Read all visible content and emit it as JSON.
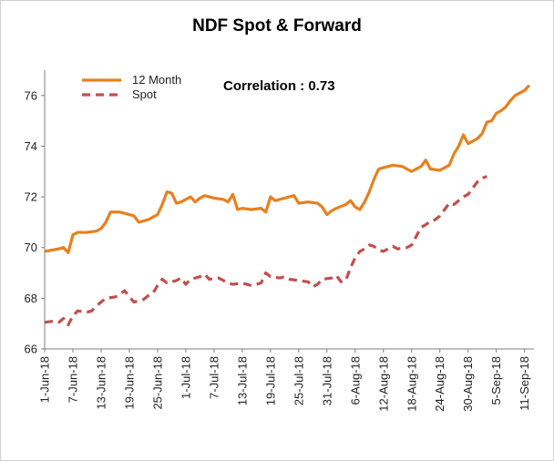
{
  "chart_data": {
    "type": "line",
    "title": "NDF Spot & Forward",
    "annotation": "Correlation : 0.73",
    "xlabel": "",
    "ylabel": "",
    "ylim": [
      66,
      77
    ],
    "yticks": [
      66,
      68,
      70,
      72,
      74,
      76
    ],
    "grid": false,
    "legend_position": "top-left",
    "x_tick_labels": [
      "1-Jun-18",
      "7-Jun-18",
      "13-Jun-18",
      "19-Jun-18",
      "25-Jun-18",
      "1-Jul-18",
      "7-Jul-18",
      "13-Jul-18",
      "19-Jul-18",
      "25-Jul-18",
      "31-Jul-18",
      "6-Aug-18",
      "12-Aug-18",
      "18-Aug-18",
      "24-Aug-18",
      "30-Aug-18",
      "5-Sep-18",
      "11-Sep-18"
    ],
    "x_tick_index": [
      0,
      6,
      12,
      18,
      24,
      30,
      36,
      42,
      48,
      54,
      60,
      66,
      72,
      78,
      84,
      90,
      96,
      102
    ],
    "x_max_index": 104,
    "series": [
      {
        "name": "12 Month",
        "color": "#e8801e",
        "style": "solid",
        "points": [
          [
            0,
            69.85
          ],
          [
            3,
            69.95
          ],
          [
            4,
            70.0
          ],
          [
            5,
            69.8
          ],
          [
            6,
            70.5
          ],
          [
            7,
            70.6
          ],
          [
            9,
            70.6
          ],
          [
            11,
            70.65
          ],
          [
            12,
            70.75
          ],
          [
            13,
            71.0
          ],
          [
            14,
            71.4
          ],
          [
            16,
            71.4
          ],
          [
            18,
            71.3
          ],
          [
            19,
            71.25
          ],
          [
            20,
            71.0
          ],
          [
            22,
            71.1
          ],
          [
            24,
            71.3
          ],
          [
            25,
            71.7
          ],
          [
            26,
            72.2
          ],
          [
            27,
            72.15
          ],
          [
            28,
            71.75
          ],
          [
            29,
            71.8
          ],
          [
            31,
            72.0
          ],
          [
            32,
            71.8
          ],
          [
            33,
            71.95
          ],
          [
            34,
            72.05
          ],
          [
            36,
            71.95
          ],
          [
            38,
            71.9
          ],
          [
            39,
            71.8
          ],
          [
            40,
            72.1
          ],
          [
            41,
            71.5
          ],
          [
            42,
            71.55
          ],
          [
            44,
            71.5
          ],
          [
            46,
            71.55
          ],
          [
            47,
            71.4
          ],
          [
            48,
            72.0
          ],
          [
            49,
            71.85
          ],
          [
            51,
            71.95
          ],
          [
            53,
            72.05
          ],
          [
            54,
            71.75
          ],
          [
            56,
            71.8
          ],
          [
            58,
            71.75
          ],
          [
            59,
            71.6
          ],
          [
            60,
            71.3
          ],
          [
            61,
            71.45
          ],
          [
            62,
            71.55
          ],
          [
            64,
            71.7
          ],
          [
            65,
            71.85
          ],
          [
            66,
            71.6
          ],
          [
            67,
            71.5
          ],
          [
            68,
            71.8
          ],
          [
            69,
            72.2
          ],
          [
            70,
            72.7
          ],
          [
            71,
            73.1
          ],
          [
            72,
            73.15
          ],
          [
            73,
            73.2
          ],
          [
            74,
            73.25
          ],
          [
            76,
            73.2
          ],
          [
            78,
            73.0
          ],
          [
            80,
            73.2
          ],
          [
            81,
            73.45
          ],
          [
            82,
            73.1
          ],
          [
            84,
            73.05
          ],
          [
            86,
            73.25
          ],
          [
            87,
            73.7
          ],
          [
            88,
            74.0
          ],
          [
            89,
            74.45
          ],
          [
            90,
            74.1
          ],
          [
            92,
            74.3
          ],
          [
            93,
            74.5
          ],
          [
            94,
            74.95
          ],
          [
            95,
            75.0
          ],
          [
            96,
            75.3
          ],
          [
            97,
            75.4
          ],
          [
            98,
            75.55
          ],
          [
            99,
            75.8
          ],
          [
            100,
            76.0
          ],
          [
            101,
            76.1
          ],
          [
            102,
            76.2
          ],
          [
            103,
            76.4
          ]
        ]
      },
      {
        "name": "Spot",
        "color": "#c0504d",
        "style": "dashed",
        "points": [
          [
            0,
            67.05
          ],
          [
            2,
            67.1
          ],
          [
            3,
            67.05
          ],
          [
            4,
            67.2
          ],
          [
            5,
            66.95
          ],
          [
            6,
            67.3
          ],
          [
            7,
            67.5
          ],
          [
            9,
            67.45
          ],
          [
            10,
            67.5
          ],
          [
            11,
            67.7
          ],
          [
            12,
            67.85
          ],
          [
            13,
            68.0
          ],
          [
            15,
            68.05
          ],
          [
            16,
            68.15
          ],
          [
            17,
            68.3
          ],
          [
            18,
            68.05
          ],
          [
            19,
            67.85
          ],
          [
            21,
            67.95
          ],
          [
            22,
            68.1
          ],
          [
            23,
            68.2
          ],
          [
            24,
            68.5
          ],
          [
            25,
            68.75
          ],
          [
            26,
            68.6
          ],
          [
            28,
            68.7
          ],
          [
            29,
            68.8
          ],
          [
            30,
            68.55
          ],
          [
            31,
            68.75
          ],
          [
            33,
            68.85
          ],
          [
            34,
            68.95
          ],
          [
            35,
            68.75
          ],
          [
            37,
            68.8
          ],
          [
            38,
            68.7
          ],
          [
            39,
            68.6
          ],
          [
            40,
            68.55
          ],
          [
            42,
            68.6
          ],
          [
            44,
            68.5
          ],
          [
            46,
            68.6
          ],
          [
            47,
            69.0
          ],
          [
            48,
            68.85
          ],
          [
            50,
            68.8
          ],
          [
            51,
            68.85
          ],
          [
            52,
            68.75
          ],
          [
            54,
            68.7
          ],
          [
            56,
            68.65
          ],
          [
            57,
            68.45
          ],
          [
            58,
            68.55
          ],
          [
            59,
            68.75
          ],
          [
            61,
            68.8
          ],
          [
            62,
            68.9
          ],
          [
            63,
            68.65
          ],
          [
            64,
            68.7
          ],
          [
            65,
            69.2
          ],
          [
            66,
            69.6
          ],
          [
            67,
            69.85
          ],
          [
            68,
            69.95
          ],
          [
            69,
            70.1
          ],
          [
            70,
            70.05
          ],
          [
            71,
            69.9
          ],
          [
            72,
            69.85
          ],
          [
            73,
            69.95
          ],
          [
            74,
            70.05
          ],
          [
            75,
            69.95
          ],
          [
            77,
            70.0
          ],
          [
            78,
            70.1
          ],
          [
            79,
            70.45
          ],
          [
            80,
            70.8
          ],
          [
            81,
            70.9
          ],
          [
            82,
            71.05
          ],
          [
            83,
            71.1
          ],
          [
            84,
            71.25
          ],
          [
            85,
            71.5
          ],
          [
            86,
            71.75
          ],
          [
            87,
            71.7
          ],
          [
            88,
            71.85
          ],
          [
            89,
            72.0
          ],
          [
            90,
            72.1
          ],
          [
            91,
            72.35
          ],
          [
            92,
            72.6
          ],
          [
            93,
            72.75
          ],
          [
            94,
            72.8
          ]
        ]
      }
    ]
  }
}
